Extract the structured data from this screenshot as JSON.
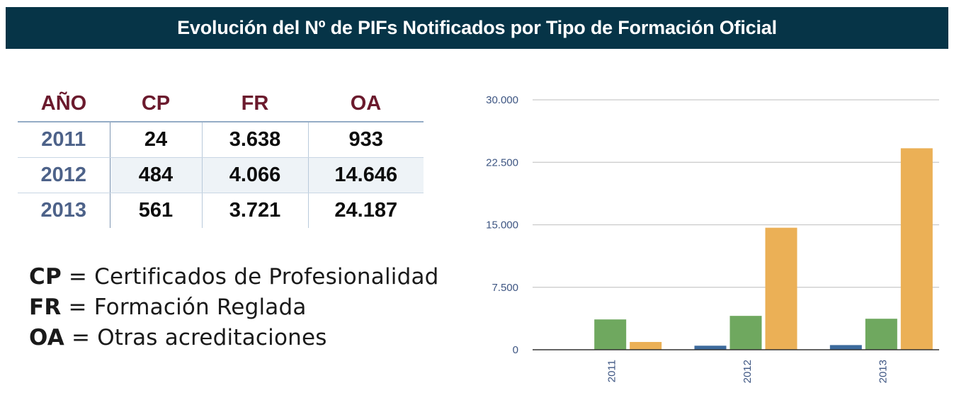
{
  "title": "Evolución del Nº de PIFs Notificados por Tipo de Formación Oficial",
  "table": {
    "headers": [
      "AÑO",
      "CP",
      "FR",
      "OA"
    ],
    "rows": [
      [
        "2011",
        "24",
        "3.638",
        "933"
      ],
      [
        "2012",
        "484",
        "4.066",
        "14.646"
      ],
      [
        "2013",
        "561",
        "3.721",
        "24.187"
      ]
    ]
  },
  "legend": [
    {
      "abbr": "CP",
      "text": " = Certificados de Profesionalidad"
    },
    {
      "abbr": "FR",
      "text": " = Formación Reglada"
    },
    {
      "abbr": "OA",
      "text": " = Otras acreditaciones"
    }
  ],
  "chart_data": {
    "type": "bar",
    "categories": [
      "2011",
      "2012",
      "2013"
    ],
    "series": [
      {
        "name": "CP",
        "values": [
          24,
          484,
          561
        ],
        "color": "#3c6a9c"
      },
      {
        "name": "FR",
        "values": [
          3638,
          4066,
          3721
        ],
        "color": "#6fa85f"
      },
      {
        "name": "OA",
        "values": [
          933,
          14646,
          24187
        ],
        "color": "#ebb056"
      }
    ],
    "y_ticks": [
      0,
      7500,
      15000,
      22500,
      30000
    ],
    "y_tick_labels": [
      "0",
      "7.500",
      "15.000",
      "22.500",
      "30.000"
    ],
    "ylim": [
      0,
      30000
    ],
    "grid": true,
    "legend": "none"
  }
}
